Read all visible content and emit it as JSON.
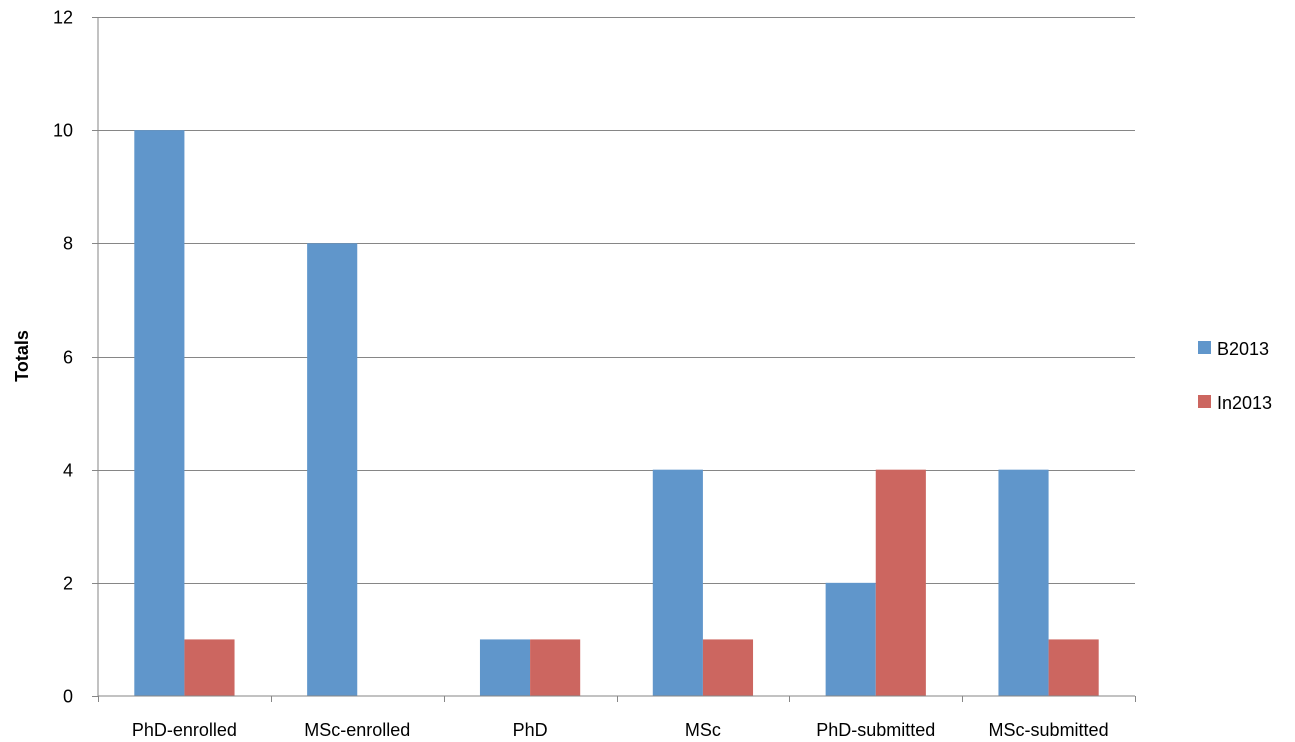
{
  "chart_data": {
    "type": "bar",
    "title": "",
    "xlabel": "",
    "ylabel": "Totals",
    "ylim": [
      0,
      12
    ],
    "yticks": [
      0,
      2,
      4,
      6,
      8,
      10,
      12
    ],
    "grid": true,
    "legend_position": "right",
    "categories": [
      "PhD-enrolled",
      "MSc-enrolled",
      "PhD",
      "MSc",
      "PhD-submitted",
      "MSc-submitted"
    ],
    "series": [
      {
        "name": "B2013",
        "color": "#6096CB",
        "values": [
          10,
          8,
          1,
          4,
          2,
          4
        ]
      },
      {
        "name": "In2013",
        "color": "#CC6660",
        "values": [
          1,
          0,
          1,
          1,
          4,
          1
        ]
      }
    ]
  }
}
